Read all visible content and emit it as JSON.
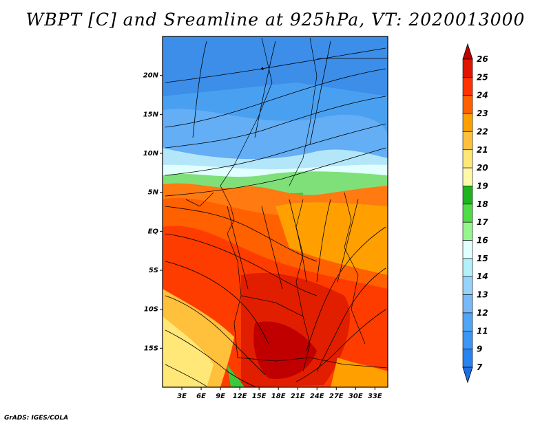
{
  "title": "WBPT [C] and Sreamline at 925hPa, VT: 2020013000",
  "credit": "GrADS: IGES/COLA",
  "map": {
    "lon_range": [
      0,
      35
    ],
    "lat_range": [
      -20,
      25
    ],
    "lat_ticks": [
      {
        "value": 20,
        "label": "20N"
      },
      {
        "value": 15,
        "label": "15N"
      },
      {
        "value": 10,
        "label": "10N"
      },
      {
        "value": 5,
        "label": "5N"
      },
      {
        "value": 0,
        "label": "EQ"
      },
      {
        "value": -5,
        "label": "5S"
      },
      {
        "value": -10,
        "label": "10S"
      },
      {
        "value": -15,
        "label": "15S"
      }
    ],
    "lon_ticks": [
      {
        "value": 3,
        "label": "3E"
      },
      {
        "value": 6,
        "label": "6E"
      },
      {
        "value": 9,
        "label": "9E"
      },
      {
        "value": 12,
        "label": "12E"
      },
      {
        "value": 15,
        "label": "15E"
      },
      {
        "value": 18,
        "label": "18E"
      },
      {
        "value": 21,
        "label": "21E"
      },
      {
        "value": 24,
        "label": "24E"
      },
      {
        "value": 27,
        "label": "27E"
      },
      {
        "value": 30,
        "label": "30E"
      },
      {
        "value": 33,
        "label": "33E"
      }
    ]
  },
  "colorbar": {
    "labels": [
      "7",
      "9",
      "11",
      "12",
      "13",
      "14",
      "15",
      "16",
      "17",
      "18",
      "19",
      "20",
      "21",
      "22",
      "23",
      "24",
      "25",
      "26"
    ],
    "colors": [
      "#1e6ee6",
      "#2882f0",
      "#3c96f5",
      "#50a5f5",
      "#78b9fa",
      "#96d2fa",
      "#b4f0fa",
      "#e1ffff",
      "#96f58c",
      "#50dc46",
      "#1eb41e",
      "#fffaaa",
      "#ffe878",
      "#ffc03c",
      "#ffa000",
      "#ff6000",
      "#ff3200",
      "#e11400",
      "#c00000"
    ]
  }
}
